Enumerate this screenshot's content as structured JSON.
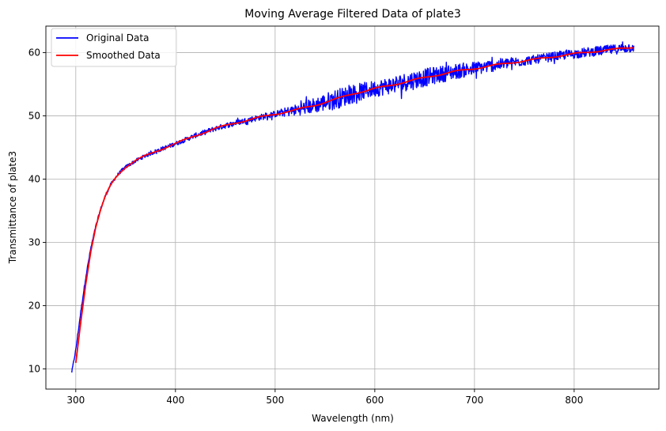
{
  "chart_data": {
    "type": "line",
    "title": "Moving Average Filtered Data of plate3",
    "xlabel": "Wavelength (nm)",
    "ylabel": "Transmittance of plate3",
    "xlim": [
      270,
      885
    ],
    "ylim": [
      6.8,
      64.2
    ],
    "xticks": [
      300,
      400,
      500,
      600,
      700,
      800
    ],
    "yticks": [
      10,
      20,
      30,
      40,
      50,
      60
    ],
    "grid": true,
    "legend_position": "top-left",
    "series": [
      {
        "name": "Original Data",
        "color": "#0000ff",
        "noise_amplitude_by_x": [
          [
            296,
            0.2
          ],
          [
            500,
            0.5
          ],
          [
            520,
            0.9
          ],
          [
            560,
            1.6
          ],
          [
            600,
            1.3
          ],
          [
            640,
            1.5
          ],
          [
            700,
            1.1
          ],
          [
            760,
            0.7
          ],
          [
            860,
            0.8
          ]
        ],
        "x": [
          296,
          300,
          305,
          310,
          315,
          320,
          325,
          330,
          335,
          340,
          345,
          350,
          360,
          370,
          380,
          400,
          420,
          440,
          460,
          480,
          500,
          520,
          540,
          560,
          580,
          600,
          620,
          640,
          660,
          680,
          700,
          720,
          740,
          760,
          780,
          800,
          820,
          840,
          860
        ],
        "y": [
          9.5,
          13,
          19,
          24.5,
          29,
          32.5,
          35.3,
          37.5,
          39.1,
          40.3,
          41.2,
          41.9,
          42.9,
          43.7,
          44.4,
          45.6,
          46.9,
          48,
          48.9,
          49.6,
          50.3,
          50.9,
          51.7,
          52.6,
          53.6,
          54.3,
          55,
          55.7,
          56.4,
          57,
          57.5,
          58,
          58.5,
          58.9,
          59.4,
          59.8,
          60.2,
          60.5,
          60.9
        ]
      },
      {
        "name": "Smoothed Data",
        "color": "#ff0000",
        "x": [
          300,
          305,
          310,
          315,
          320,
          325,
          330,
          335,
          340,
          345,
          350,
          360,
          370,
          380,
          400,
          420,
          440,
          460,
          480,
          500,
          520,
          540,
          560,
          580,
          600,
          620,
          640,
          660,
          680,
          700,
          720,
          740,
          760,
          780,
          800,
          820,
          840,
          860
        ],
        "y": [
          11,
          17.5,
          23.5,
          28.5,
          32.3,
          35.1,
          37.4,
          39.1,
          40.3,
          41.2,
          41.9,
          42.9,
          43.7,
          44.4,
          45.6,
          46.9,
          48,
          48.9,
          49.6,
          50.3,
          50.9,
          51.7,
          52.6,
          53.6,
          54.3,
          55,
          55.7,
          56.4,
          57,
          57.5,
          58,
          58.5,
          58.9,
          59.4,
          59.8,
          60.2,
          60.5,
          60.9
        ]
      }
    ]
  }
}
